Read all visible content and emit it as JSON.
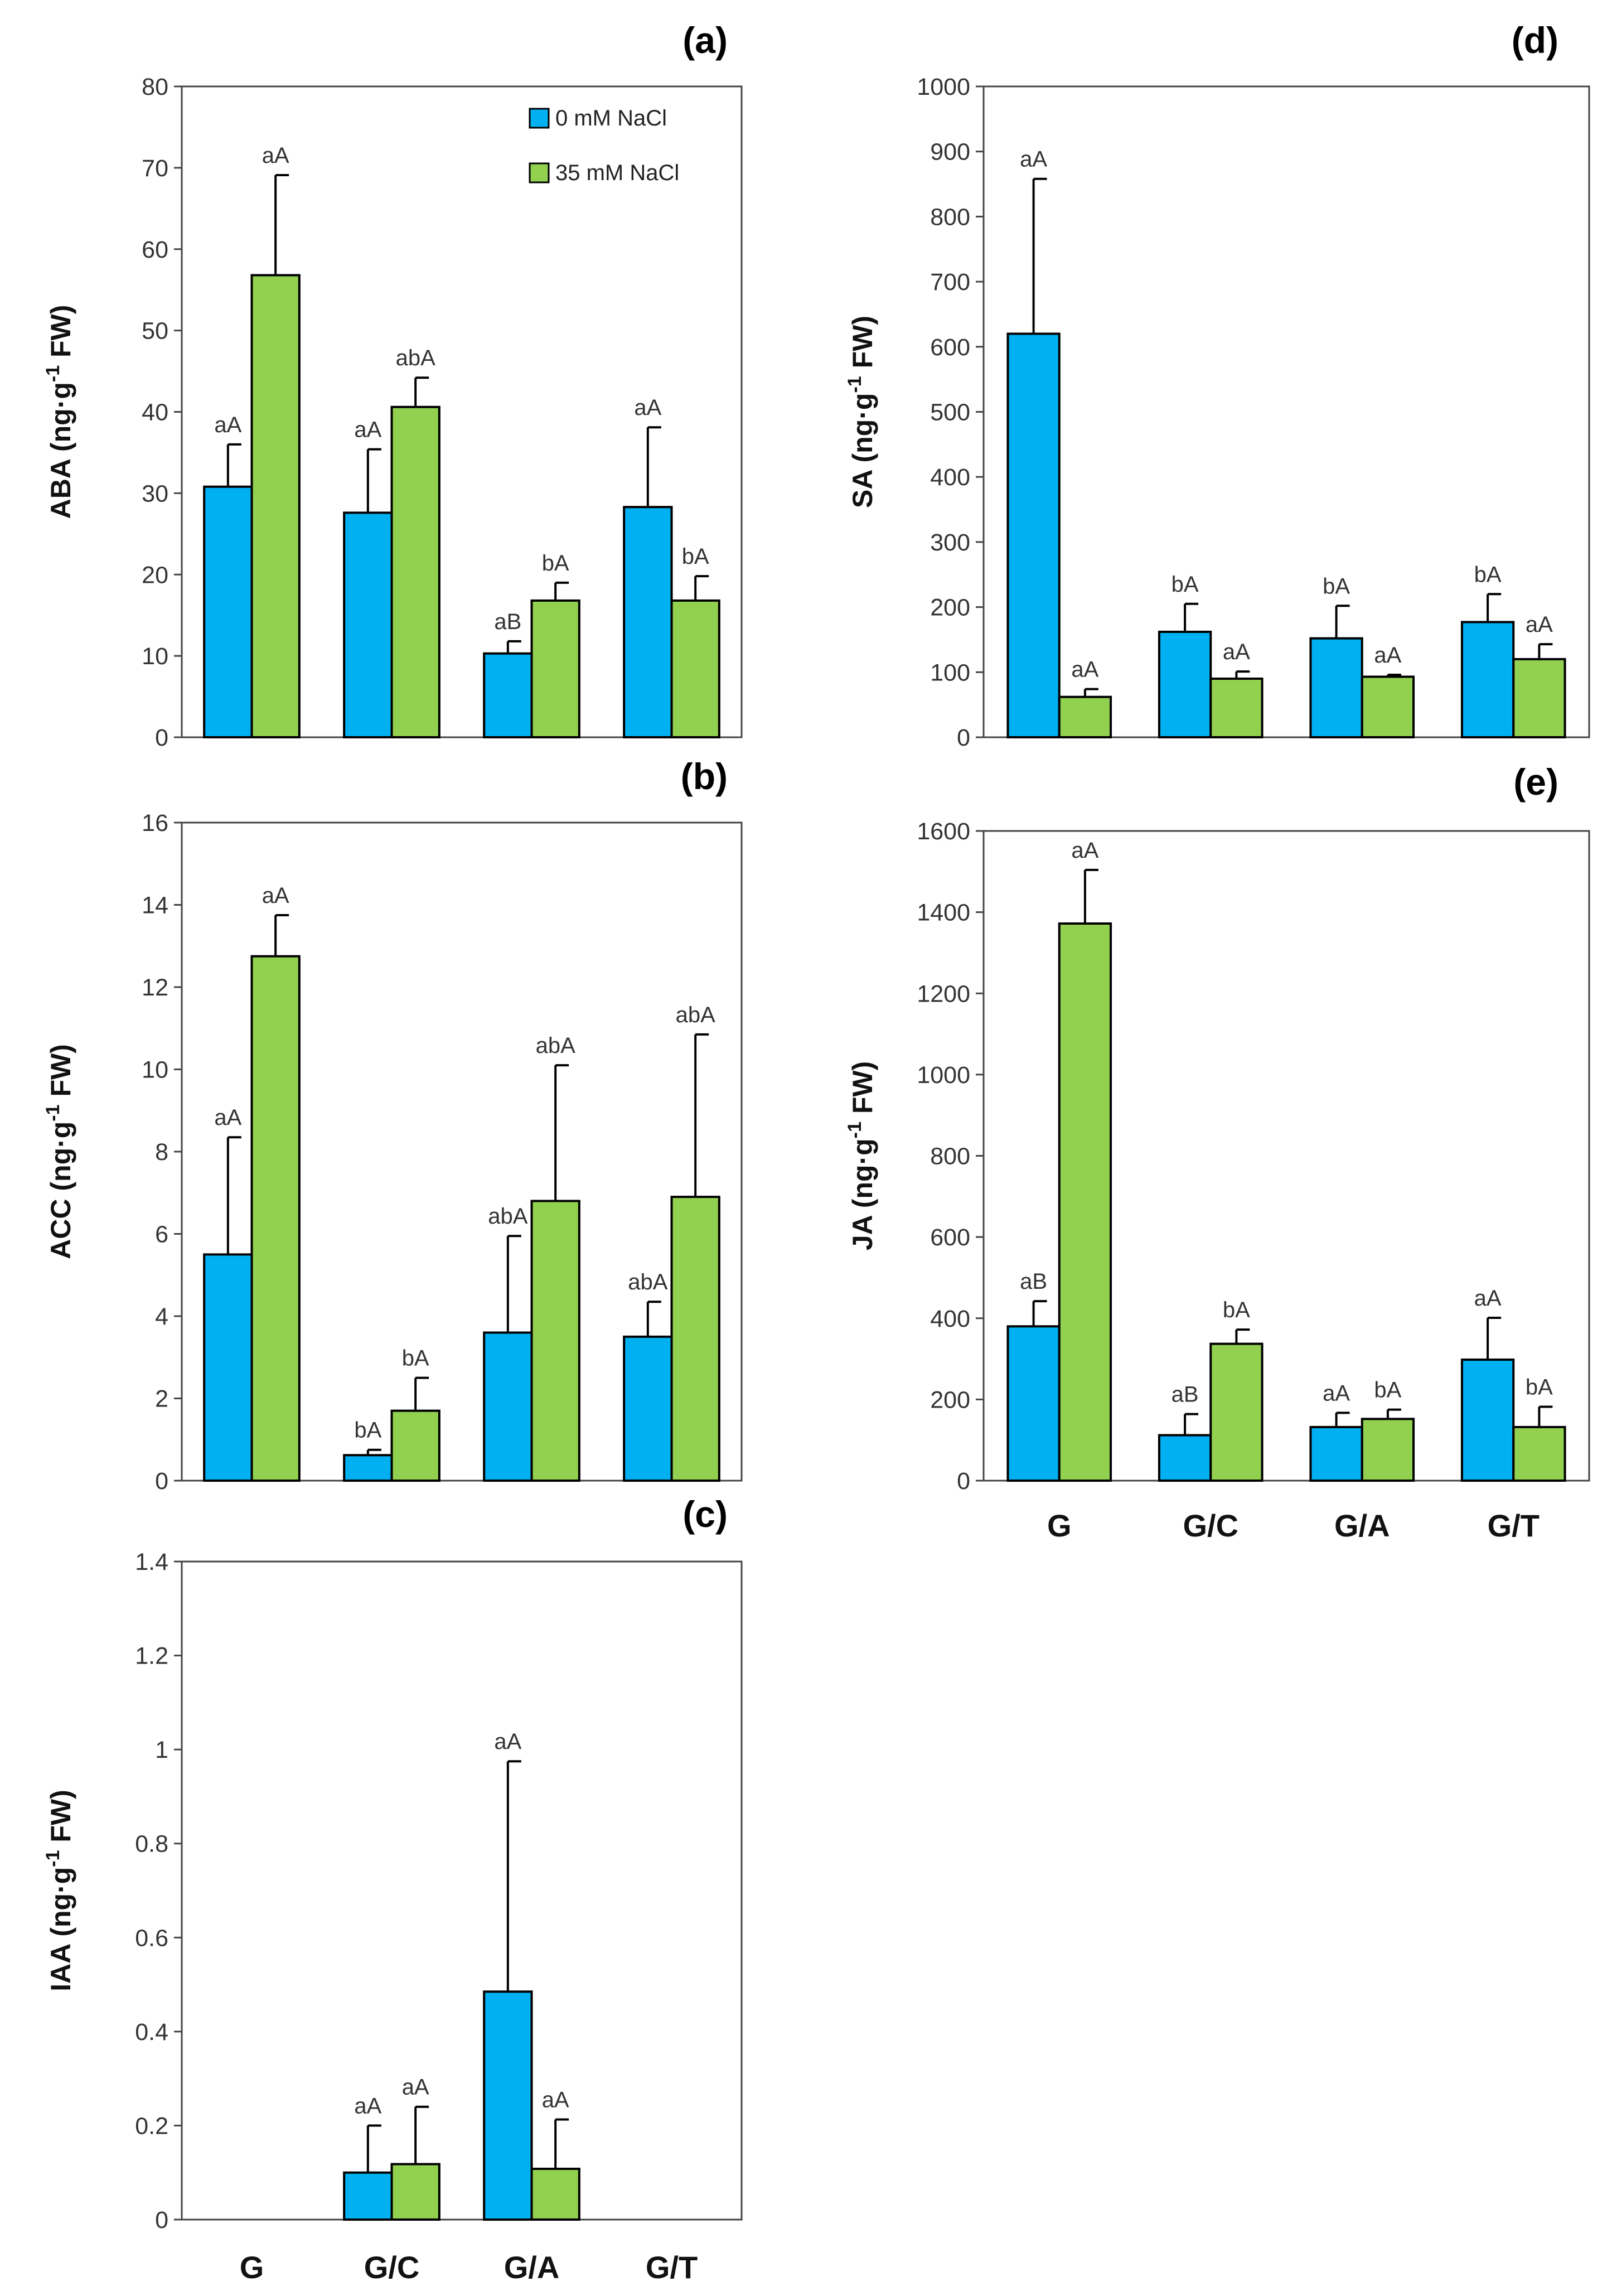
{
  "figure": {
    "categories": [
      "G",
      "G/C",
      "G/A",
      "G/T"
    ],
    "legend": [
      {
        "label": "0 mM NaCl",
        "color": "#00b0f0"
      },
      {
        "label": "35 mM NaCl",
        "color": "#92d050"
      }
    ]
  },
  "chart_data": [
    {
      "id": "a",
      "panel_label": "(a)",
      "type": "bar",
      "ylabel": "ABA (ng·g",
      "ylabel_sup": "-1",
      "ylabel_tail": " FW)",
      "ylim": [
        0,
        80
      ],
      "yticks": [
        "0",
        "10",
        "20",
        "30",
        "40",
        "50",
        "60",
        "70",
        "80"
      ],
      "legend": "top-right",
      "categories": [
        "G",
        "G/C",
        "G/A",
        "G/T"
      ],
      "series": [
        {
          "name": "0 mM NaCl",
          "color": "#00b0f0",
          "values": [
            30.8,
            27.6,
            10.3,
            28.3
          ],
          "errors": [
            5.2,
            7.8,
            1.5,
            9.8
          ],
          "labels": [
            "aA",
            "aA",
            "aB",
            "aA"
          ]
        },
        {
          "name": "35 mM NaCl",
          "color": "#92d050",
          "values": [
            56.8,
            40.6,
            16.8,
            16.8
          ],
          "errors": [
            12.3,
            3.6,
            2.2,
            3.0
          ],
          "labels": [
            "aA",
            "abA",
            "bA",
            "bA"
          ]
        }
      ]
    },
    {
      "id": "b",
      "panel_label": "(b)",
      "type": "bar",
      "ylabel": "ACC (ng·g",
      "ylabel_sup": "-1",
      "ylabel_tail": " FW)",
      "ylim": [
        0,
        16
      ],
      "yticks": [
        "0",
        "2",
        "4",
        "6",
        "8",
        "10",
        "12",
        "14",
        "16"
      ],
      "categories": [
        "G",
        "G/C",
        "G/A",
        "G/T"
      ],
      "series": [
        {
          "name": "0 mM NaCl",
          "color": "#00b0f0",
          "values": [
            5.5,
            0.62,
            3.6,
            3.5
          ],
          "errors": [
            2.85,
            0.13,
            2.35,
            0.85
          ],
          "labels": [
            "aA",
            "bA",
            "abA",
            "abA"
          ]
        },
        {
          "name": "35 mM NaCl",
          "color": "#92d050",
          "values": [
            12.75,
            1.7,
            6.8,
            6.9
          ],
          "errors": [
            1.0,
            0.8,
            3.3,
            3.95
          ],
          "labels": [
            "aA",
            "bA",
            "abA",
            "abA"
          ]
        }
      ]
    },
    {
      "id": "c",
      "panel_label": "(c)",
      "type": "bar",
      "ylabel": "IAA (ng·g",
      "ylabel_sup": "-1",
      "ylabel_tail": " FW)",
      "ylim": [
        0,
        1.4
      ],
      "yticks": [
        "0",
        "0.2",
        "0.4",
        "0.6",
        "0.8",
        "1",
        "1.2",
        "1.4"
      ],
      "categories": [
        "G",
        "G/C",
        "G/A",
        "G/T"
      ],
      "series": [
        {
          "name": "0 mM NaCl",
          "color": "#00b0f0",
          "values": [
            0,
            0.1,
            0.485,
            0
          ],
          "errors": [
            0,
            0.1,
            0.49,
            0
          ],
          "labels": [
            "",
            "aA",
            "aA",
            ""
          ]
        },
        {
          "name": "35 mM NaCl",
          "color": "#92d050",
          "values": [
            0,
            0.118,
            0.108,
            0
          ],
          "errors": [
            0,
            0.122,
            0.105,
            0
          ],
          "labels": [
            "",
            "aA",
            "aA",
            ""
          ]
        }
      ]
    },
    {
      "id": "d",
      "panel_label": "(d)",
      "type": "bar",
      "ylabel": "SA (ng·g",
      "ylabel_sup": "-1",
      "ylabel_tail": " FW)",
      "ylim": [
        0,
        1000
      ],
      "yticks": [
        "0",
        "100",
        "200",
        "300",
        "400",
        "500",
        "600",
        "700",
        "800",
        "900",
        "1000"
      ],
      "categories": [
        "G",
        "G/C",
        "G/A",
        "G/T"
      ],
      "series": [
        {
          "name": "0 mM NaCl",
          "color": "#00b0f0",
          "values": [
            620,
            162,
            152,
            177
          ],
          "errors": [
            238,
            43,
            50,
            43
          ],
          "labels": [
            "aA",
            "bA",
            "bA",
            "bA"
          ]
        },
        {
          "name": "35 mM NaCl",
          "color": "#92d050",
          "values": [
            62,
            90,
            93,
            120
          ],
          "errors": [
            12,
            11,
            3,
            23
          ],
          "labels": [
            "aA",
            "aA",
            "aA",
            "aA"
          ]
        }
      ]
    },
    {
      "id": "e",
      "panel_label": "(e)",
      "type": "bar",
      "ylabel": "JA (ng·g",
      "ylabel_sup": "-1",
      "ylabel_tail": " FW)",
      "ylim": [
        0,
        1600
      ],
      "yticks": [
        "0",
        "200",
        "400",
        "600",
        "800",
        "1000",
        "1200",
        "1400",
        "1600"
      ],
      "categories": [
        "G",
        "G/C",
        "G/A",
        "G/T"
      ],
      "series": [
        {
          "name": "0 mM NaCl",
          "color": "#00b0f0",
          "values": [
            380,
            112,
            132,
            298
          ],
          "errors": [
            62,
            52,
            35,
            103
          ],
          "labels": [
            "aB",
            "aB",
            "aA",
            "aA"
          ]
        },
        {
          "name": "35 mM NaCl",
          "color": "#92d050",
          "values": [
            1372,
            337,
            152,
            132
          ],
          "errors": [
            132,
            35,
            23,
            50
          ],
          "labels": [
            "aA",
            "bA",
            "bA",
            "bA"
          ]
        }
      ]
    }
  ]
}
